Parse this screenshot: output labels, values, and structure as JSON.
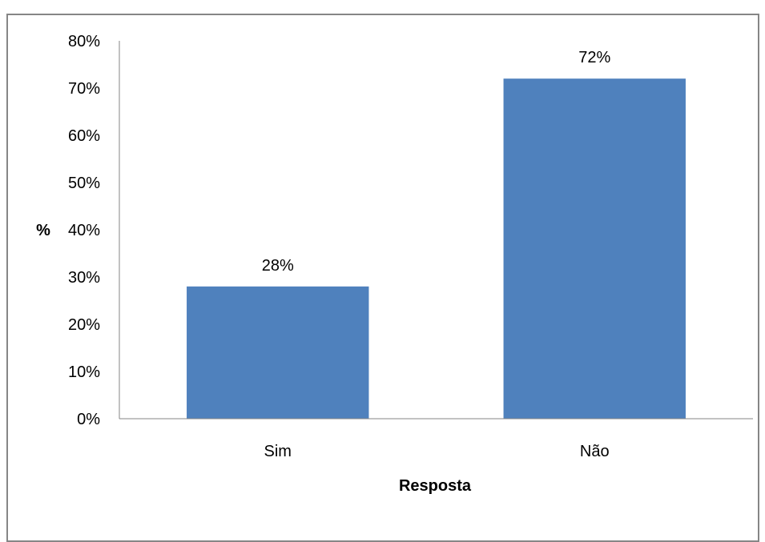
{
  "chart_data": {
    "type": "bar",
    "categories": [
      "Sim",
      "Não"
    ],
    "values": [
      28,
      72
    ],
    "data_labels": [
      "28%",
      "72%"
    ],
    "xlabel": "Resposta",
    "ylabel": "%",
    "ylim": [
      0,
      80
    ],
    "yticks": [
      "0%",
      "10%",
      "20%",
      "30%",
      "40%",
      "50%",
      "60%",
      "70%",
      "80%"
    ],
    "grid": false,
    "legend": "none",
    "bar_color": "#4F81BD"
  }
}
